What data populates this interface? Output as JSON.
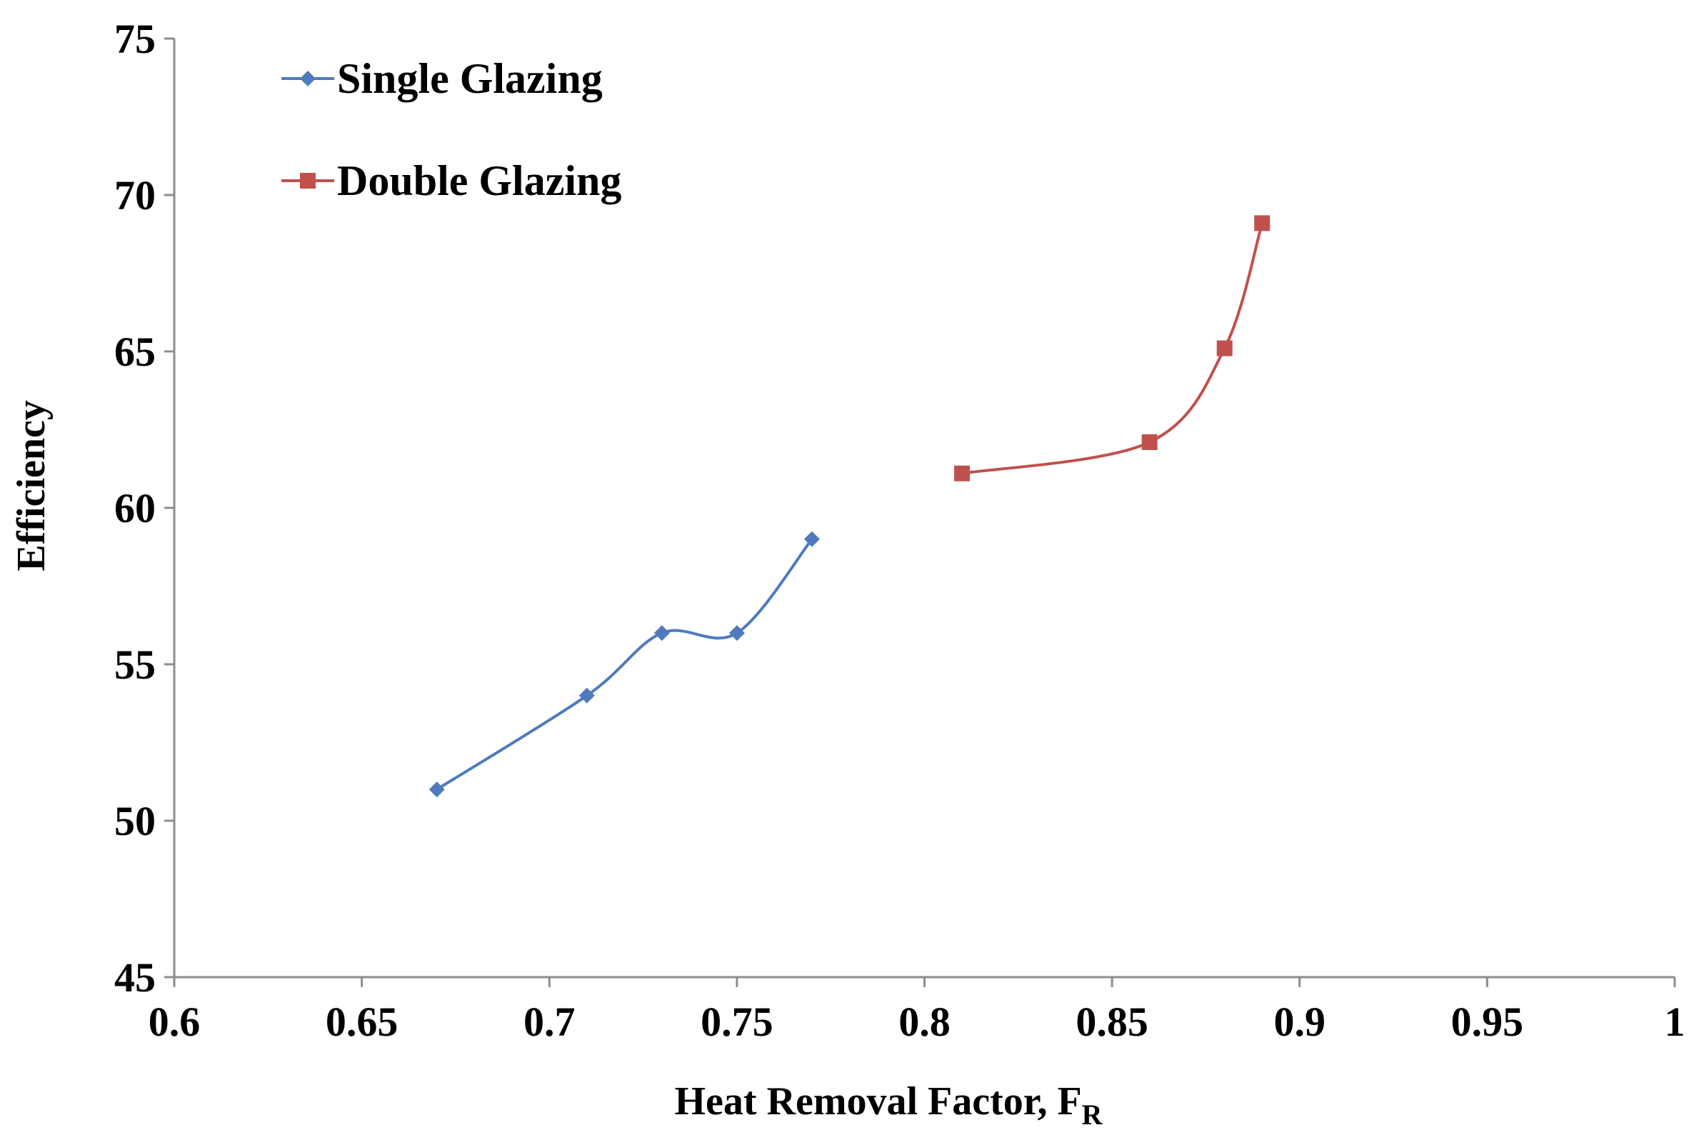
{
  "chart_data": {
    "type": "line",
    "title": "",
    "xlabel": "Heat Removal Factor, F",
    "xlabel_subscript": "R",
    "ylabel": "Efficiency",
    "xlim": [
      0.6,
      1.0
    ],
    "ylim": [
      45,
      75
    ],
    "x_ticks": [
      0.6,
      0.65,
      0.7,
      0.75,
      0.8,
      0.85,
      0.9,
      0.95,
      1.0
    ],
    "x_tick_labels": [
      "0.6",
      "0.65",
      "0.7",
      "0.75",
      "0.8",
      "0.85",
      "0.9",
      "0.95",
      "1"
    ],
    "y_ticks": [
      45,
      50,
      55,
      60,
      65,
      70,
      75
    ],
    "y_tick_labels": [
      "45",
      "50",
      "55",
      "60",
      "65",
      "70",
      "75"
    ],
    "grid": false,
    "legend_position": "top-left",
    "series": [
      {
        "name": "Single Glazing",
        "color": "#4F7BBD",
        "marker": "diamond",
        "smooth": true,
        "x": [
          0.67,
          0.71,
          0.73,
          0.75,
          0.77
        ],
        "y": [
          51,
          54,
          56,
          56,
          59
        ]
      },
      {
        "name": "Double Glazing",
        "color": "#C0504D",
        "marker": "square",
        "smooth": true,
        "x": [
          0.81,
          0.86,
          0.88,
          0.89
        ],
        "y": [
          61.1,
          62.1,
          65.1,
          69.1
        ]
      }
    ]
  }
}
